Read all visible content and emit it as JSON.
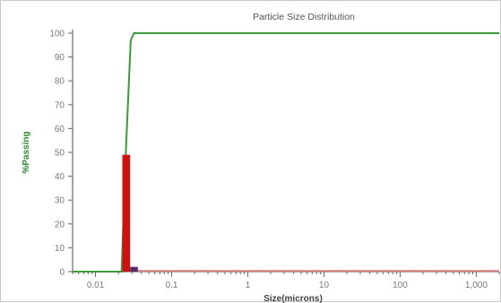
{
  "chart_data": {
    "type": "bar",
    "title": "Particle Size Distribution",
    "xlabel": "Size(microns)",
    "ylabel": "%Passing",
    "x_scale": "log",
    "xlim": [
      0.005,
      2000
    ],
    "ylim": [
      0,
      100
    ],
    "y_ticks": [
      0,
      10,
      20,
      30,
      40,
      50,
      60,
      70,
      80,
      90,
      100
    ],
    "x_ticks": [
      {
        "value": 0.01,
        "label": "0.01"
      },
      {
        "value": 0.1,
        "label": "0.1"
      },
      {
        "value": 1,
        "label": "1"
      },
      {
        "value": 10,
        "label": "10"
      },
      {
        "value": 100,
        "label": "100"
      },
      {
        "value": 1000,
        "label": "1,000"
      }
    ],
    "grid": false,
    "series": [
      {
        "kind": "line",
        "color": "#3a9a3a",
        "points": [
          [
            0.005,
            0
          ],
          [
            0.022,
            0
          ],
          [
            0.025,
            50
          ],
          [
            0.029,
            97
          ],
          [
            0.032,
            100
          ],
          [
            2000,
            100
          ]
        ]
      },
      {
        "kind": "bar",
        "color": "#cc1111",
        "bars": [
          {
            "x0": 0.0225,
            "x1": 0.0285,
            "value": 49
          }
        ]
      },
      {
        "kind": "bar",
        "color": "#5a2a6a",
        "bars": [
          {
            "x0": 0.0285,
            "x1": 0.036,
            "value": 2
          }
        ]
      },
      {
        "kind": "line",
        "color": "#d87c7c",
        "points": [
          [
            0.036,
            0.3
          ],
          [
            2000,
            0.3
          ]
        ]
      }
    ],
    "axis_color": "#666666",
    "ylabel_color": "#2d8a2d"
  }
}
